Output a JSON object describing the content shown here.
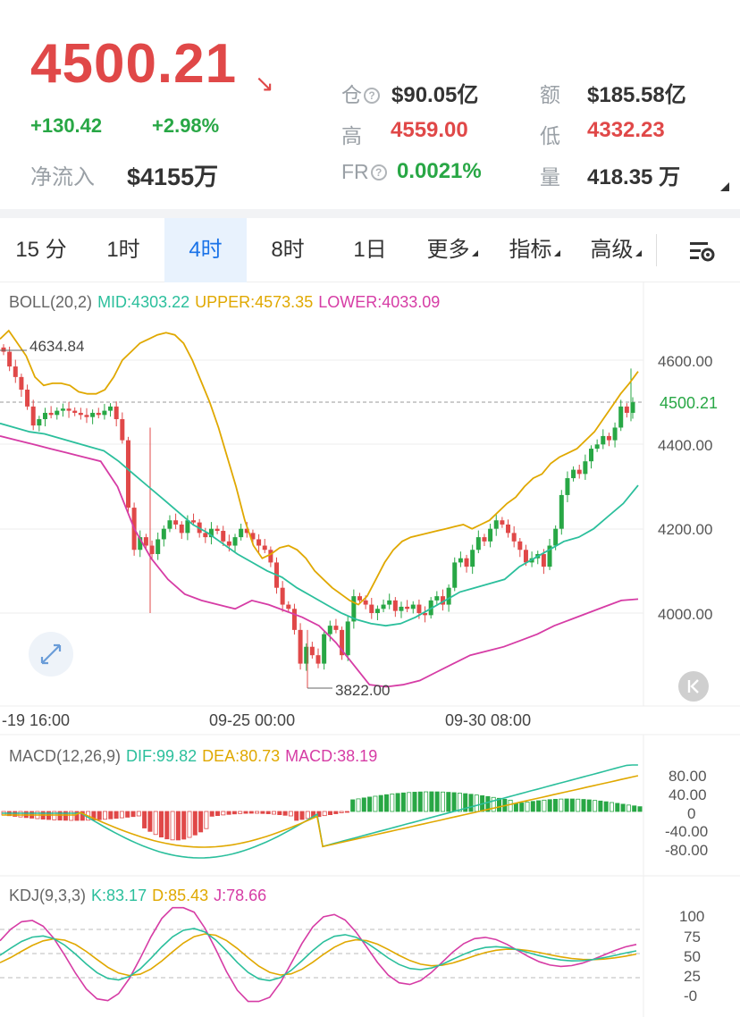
{
  "header": {
    "price": "4500.21",
    "arrow_icon": "arrow-down-right",
    "change_abs": "+130.42",
    "change_pct": "+2.98%",
    "net_inflow_label": "净流入",
    "net_inflow_value": "$4155万",
    "stats": {
      "oi_label": "仓",
      "oi_value": "$90.05亿",
      "turnover_label": "额",
      "turnover_value": "$185.58亿",
      "high_label": "高",
      "high_value": "4559.00",
      "low_label": "低",
      "low_value": "4332.23",
      "fr_label": "FR",
      "fr_value": "0.0021%",
      "volume_label": "量",
      "volume_value": "418.35 万"
    },
    "colors": {
      "up": "#28a745",
      "down": "#e04848"
    }
  },
  "tabs": {
    "items": [
      "15 分",
      "1时",
      "4时",
      "8时",
      "1日",
      "更多",
      "指标",
      "高级"
    ],
    "active": "4时",
    "settings_icon": "chart-settings-icon"
  },
  "boll": {
    "label": "BOLL(20,2)",
    "mid": "MID:4303.22",
    "upper": "UPPER:4573.35",
    "lower": "LOWER:4033.09",
    "max_label": "4634.84",
    "min_label": "3822.00",
    "current_price_tag": "4500.21",
    "y_axis": [
      "4600.00",
      "4400.00",
      "4200.00",
      "4000.00"
    ],
    "x_axis": [
      "-19 16:00",
      "09-25 00:00",
      "09-30 08:00"
    ],
    "colors": {
      "mid": "#2bbf9c",
      "upper": "#e0a800",
      "lower": "#d63ca5"
    }
  },
  "macd": {
    "label": "MACD(12,26,9)",
    "dif": "DIF:99.82",
    "dea": "DEA:80.73",
    "macd": "MACD:38.19",
    "y_axis": [
      "80.00",
      "40.00",
      "0",
      "-40.00",
      "-80.00"
    ]
  },
  "kdj": {
    "label": "KDJ(9,3,3)",
    "k": "K:83.17",
    "d": "D:85.43",
    "j": "J:78.66",
    "y_axis": [
      "100",
      "75",
      "50",
      "25",
      "-0"
    ]
  },
  "chart_data": {
    "type": "candlestick",
    "interval": "4h",
    "x_labels": [
      "-19 16:00",
      "09-25 00:00",
      "09-30 08:00"
    ],
    "y_range": [
      3780,
      4690
    ],
    "last_price": 4500.21,
    "high_mark": 4634.84,
    "low_mark": 3822.0,
    "candles_close": [
      4620,
      4585,
      4560,
      4530,
      4490,
      4445,
      4460,
      4475,
      4470,
      4480,
      4485,
      4480,
      4475,
      4470,
      4465,
      4475,
      4470,
      4480,
      4490,
      4460,
      4410,
      4250,
      4150,
      4180,
      4160,
      4140,
      4175,
      4200,
      4220,
      4210,
      4190,
      4220,
      4215,
      4190,
      4180,
      4200,
      4195,
      4170,
      4160,
      4180,
      4200,
      4190,
      4175,
      4160,
      4150,
      4120,
      4060,
      4020,
      4010,
      3960,
      3880,
      3920,
      3900,
      3880,
      3950,
      3970,
      3960,
      3900,
      3980,
      4040,
      4030,
      4020,
      4000,
      4010,
      4020,
      4030,
      4005,
      4015,
      4010,
      4020,
      4000,
      3995,
      4030,
      4040,
      4020,
      4060,
      4120,
      4130,
      4110,
      4150,
      4180,
      4170,
      4200,
      4220,
      4210,
      4190,
      4170,
      4150,
      4120,
      4130,
      4140,
      4110,
      4160,
      4200,
      4280,
      4320,
      4340,
      4330,
      4360,
      4390,
      4400,
      4420,
      4410,
      4440,
      4490,
      4475,
      4500
    ],
    "boll_upper": [
      4650,
      4670,
      4640,
      4610,
      4560,
      4540,
      4545,
      4545,
      4540,
      4525,
      4520,
      4520,
      4530,
      4560,
      4600,
      4620,
      4640,
      4650,
      4660,
      4665,
      4660,
      4640,
      4600,
      4550,
      4500,
      4440,
      4370,
      4300,
      4220,
      4160,
      4130,
      4140,
      4155,
      4160,
      4150,
      4130,
      4100,
      4080,
      4060,
      4045,
      4030,
      4020,
      4040,
      4080,
      4120,
      4150,
      4170,
      4180,
      4185,
      4190,
      4195,
      4200,
      4205,
      4210,
      4200,
      4210,
      4220,
      4240,
      4260,
      4275,
      4300,
      4320,
      4330,
      4355,
      4370,
      4380,
      4390,
      4410,
      4430,
      4460,
      4490,
      4520,
      4545,
      4573
    ],
    "boll_mid": [
      4450,
      4440,
      4430,
      4425,
      4415,
      4405,
      4395,
      4385,
      4360,
      4330,
      4300,
      4270,
      4240,
      4210,
      4190,
      4165,
      4140,
      4120,
      4100,
      4085,
      4060,
      4040,
      4020,
      4000,
      3985,
      3975,
      3970,
      3975,
      3990,
      4010,
      4030,
      4050,
      4060,
      4070,
      4080,
      4110,
      4130,
      4150,
      4170,
      4180,
      4200,
      4230,
      4260,
      4303
    ],
    "boll_lower": [
      4420,
      4410,
      4400,
      4390,
      4380,
      4370,
      4360,
      4300,
      4200,
      4130,
      4080,
      4045,
      4030,
      4020,
      4010,
      4030,
      4020,
      4005,
      3990,
      3970,
      3930,
      3880,
      3830,
      3825,
      3830,
      3840,
      3860,
      3880,
      3900,
      3910,
      3920,
      3935,
      3950,
      3970,
      3985,
      4000,
      4015,
      4030,
      4033
    ]
  }
}
